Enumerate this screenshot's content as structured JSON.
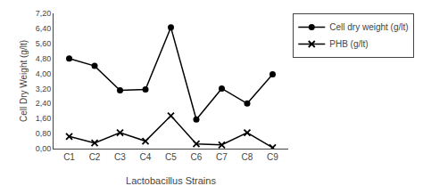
{
  "chart_data": {
    "type": "line",
    "categories": [
      "C1",
      "C2",
      "C3",
      "C4",
      "C5",
      "C6",
      "C7",
      "C8",
      "C9"
    ],
    "series": [
      {
        "name": "Cell dry weight (g/lt)",
        "color": "#000000",
        "marker": "circle",
        "values": [
          4.8,
          4.4,
          3.1,
          3.15,
          6.45,
          1.55,
          3.2,
          2.4,
          3.95
        ]
      },
      {
        "name": "PHB (g/lt)",
        "color": "#000000",
        "marker": "x",
        "values": [
          0.65,
          0.3,
          0.85,
          0.4,
          1.75,
          0.25,
          0.2,
          0.85,
          0.05
        ]
      }
    ],
    "xlabel": "Lactobacillus Strains",
    "ylabel": "Cell Dry Weight (g/lt)",
    "ylim": [
      0.0,
      7.2
    ],
    "yticks": [
      {
        "value": 0.0,
        "label": "0,00"
      },
      {
        "value": 0.8,
        "label": "0,80"
      },
      {
        "value": 1.6,
        "label": "1,60"
      },
      {
        "value": 2.4,
        "label": "2,40"
      },
      {
        "value": 3.2,
        "label": "3,20"
      },
      {
        "value": 4.0,
        "label": "4,00"
      },
      {
        "value": 4.8,
        "label": "4,80"
      },
      {
        "value": 5.6,
        "label": "5,60"
      },
      {
        "value": 6.4,
        "label": "6,40"
      },
      {
        "value": 7.2,
        "label": "7,20"
      }
    ],
    "grid": false,
    "legend": "right"
  }
}
